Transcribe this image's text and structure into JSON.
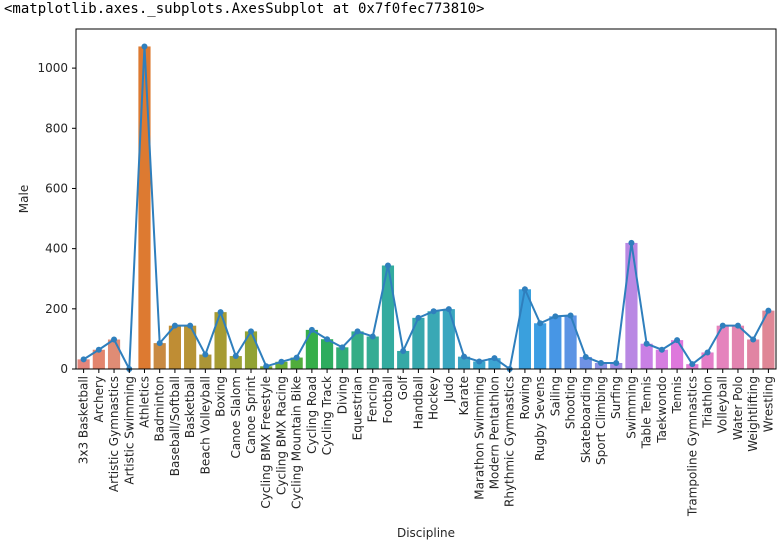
{
  "output_repr": "<matplotlib.axes._subplots.AxesSubplot at 0x7f0fec773810>",
  "chart_data": {
    "type": "bar",
    "overlay": "line",
    "xlabel": "Discipline",
    "ylabel": "Male",
    "ylim": [
      0,
      1130
    ],
    "yticks": [
      0,
      200,
      400,
      600,
      800,
      1000
    ],
    "grid": false,
    "line_color": "#2f7fbd",
    "categories": [
      "3x3 Basketball",
      "Archery",
      "Artistic Gymnastics",
      "Artistic Swimming",
      "Athletics",
      "Badminton",
      "Baseball/Softball",
      "Basketball",
      "Beach Volleyball",
      "Boxing",
      "Canoe Slalom",
      "Canoe Sprint",
      "Cycling BMX Freestyle",
      "Cycling BMX Racing",
      "Cycling Mountain Bike",
      "Cycling Road",
      "Cycling Track",
      "Diving",
      "Equestrian",
      "Fencing",
      "Football",
      "Golf",
      "Handball",
      "Hockey",
      "Judo",
      "Karate",
      "Marathon Swimming",
      "Modern Pentathlon",
      "Rhythmic Gymnastics",
      "Rowing",
      "Rugby Sevens",
      "Sailing",
      "Shooting",
      "Skateboarding",
      "Sport Climbing",
      "Surfing",
      "Swimming",
      "Table Tennis",
      "Taekwondo",
      "Tennis",
      "Trampoline Gymnastics",
      "Triathlon",
      "Volleyball",
      "Water Polo",
      "Weightlifting",
      "Wrestling"
    ],
    "values": [
      32,
      64,
      98,
      0,
      1072,
      86,
      144,
      144,
      48,
      189,
      43,
      125,
      9,
      24,
      38,
      130,
      99,
      72,
      125,
      108,
      344,
      60,
      170,
      192,
      199,
      41,
      25,
      36,
      0,
      265,
      152,
      175,
      178,
      40,
      20,
      20,
      419,
      84,
      64,
      96,
      16,
      55,
      144,
      144,
      98,
      194
    ],
    "colors": [
      "#e3867c",
      "#e2856e",
      "#df8c75",
      "#dc8c5d",
      "#dd7a31",
      "#c98a42",
      "#bf8d34",
      "#b79436",
      "#ab9537",
      "#a69b33",
      "#9ca235",
      "#91a234",
      "#7ea934",
      "#6aab36",
      "#50ad3c",
      "#36ae4a",
      "#2eac5e",
      "#32ad75",
      "#34ad86",
      "#35ac94",
      "#33ab9f",
      "#35a9a6",
      "#37a8ad",
      "#39a8b5",
      "#3aa6bf",
      "#3ba5c4",
      "#3ba4cc",
      "#3ca4d2",
      "#3ea2d9",
      "#3aa0dd",
      "#3d9ee3",
      "#4796e5",
      "#5c94e4",
      "#6f92e5",
      "#8b91e4",
      "#a08de5",
      "#b988e3",
      "#c980e5",
      "#d57ee0",
      "#de78dc",
      "#e07ad1",
      "#e47ec8",
      "#e583bd",
      "#e284b0",
      "#e184a3",
      "#df8796"
    ]
  }
}
